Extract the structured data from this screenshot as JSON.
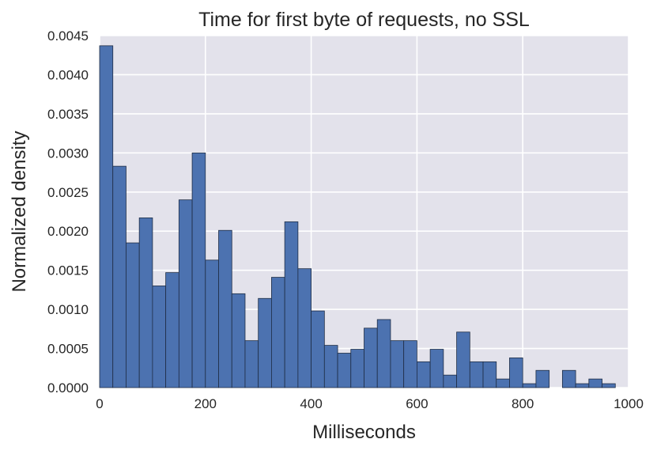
{
  "chart_data": {
    "type": "bar",
    "title": "Time for first byte of requests, no SSL",
    "xlabel": "Milliseconds",
    "ylabel": "Normalized density",
    "xlim": [
      0,
      1000
    ],
    "ylim": [
      0,
      0.0045
    ],
    "x_ticks": [
      "0",
      "200",
      "400",
      "600",
      "800",
      "1000"
    ],
    "y_ticks": [
      "0.0000",
      "0.0005",
      "0.0010",
      "0.0015",
      "0.0020",
      "0.0025",
      "0.0030",
      "0.0035",
      "0.0040",
      "0.0045"
    ],
    "grid": true,
    "colors": {
      "bar": "#4c72b0",
      "background": "#e3e2eb",
      "grid": "#ffffff"
    },
    "bins": [
      {
        "x0": 0,
        "x1": 25,
        "value": 0.00437
      },
      {
        "x0": 25,
        "x1": 50,
        "value": 0.00283
      },
      {
        "x0": 50,
        "x1": 75,
        "value": 0.00185
      },
      {
        "x0": 75,
        "x1": 100,
        "value": 0.00217
      },
      {
        "x0": 100,
        "x1": 125,
        "value": 0.0013
      },
      {
        "x0": 125,
        "x1": 150,
        "value": 0.00147
      },
      {
        "x0": 150,
        "x1": 175,
        "value": 0.0024
      },
      {
        "x0": 175,
        "x1": 200,
        "value": 0.003
      },
      {
        "x0": 200,
        "x1": 225,
        "value": 0.00163
      },
      {
        "x0": 225,
        "x1": 250,
        "value": 0.00201
      },
      {
        "x0": 250,
        "x1": 275,
        "value": 0.0012
      },
      {
        "x0": 275,
        "x1": 300,
        "value": 0.0006
      },
      {
        "x0": 300,
        "x1": 325,
        "value": 0.00114
      },
      {
        "x0": 325,
        "x1": 350,
        "value": 0.00141
      },
      {
        "x0": 350,
        "x1": 375,
        "value": 0.00212
      },
      {
        "x0": 375,
        "x1": 400,
        "value": 0.00152
      },
      {
        "x0": 400,
        "x1": 425,
        "value": 0.00098
      },
      {
        "x0": 425,
        "x1": 450,
        "value": 0.00054
      },
      {
        "x0": 450,
        "x1": 475,
        "value": 0.00044
      },
      {
        "x0": 475,
        "x1": 500,
        "value": 0.00049
      },
      {
        "x0": 500,
        "x1": 525,
        "value": 0.00076
      },
      {
        "x0": 525,
        "x1": 550,
        "value": 0.00087
      },
      {
        "x0": 550,
        "x1": 575,
        "value": 0.0006
      },
      {
        "x0": 575,
        "x1": 600,
        "value": 0.0006
      },
      {
        "x0": 600,
        "x1": 625,
        "value": 0.00033
      },
      {
        "x0": 625,
        "x1": 650,
        "value": 0.00049
      },
      {
        "x0": 650,
        "x1": 675,
        "value": 0.00016
      },
      {
        "x0": 675,
        "x1": 700,
        "value": 0.00071
      },
      {
        "x0": 700,
        "x1": 725,
        "value": 0.00033
      },
      {
        "x0": 725,
        "x1": 750,
        "value": 0.00033
      },
      {
        "x0": 750,
        "x1": 775,
        "value": 0.00011
      },
      {
        "x0": 775,
        "x1": 800,
        "value": 0.00038
      },
      {
        "x0": 800,
        "x1": 825,
        "value": 5e-05
      },
      {
        "x0": 825,
        "x1": 850,
        "value": 0.00022
      },
      {
        "x0": 850,
        "x1": 875,
        "value": 0
      },
      {
        "x0": 875,
        "x1": 900,
        "value": 0.00022
      },
      {
        "x0": 900,
        "x1": 925,
        "value": 5e-05
      },
      {
        "x0": 925,
        "x1": 950,
        "value": 0.00011
      },
      {
        "x0": 950,
        "x1": 975,
        "value": 5e-05
      }
    ]
  }
}
